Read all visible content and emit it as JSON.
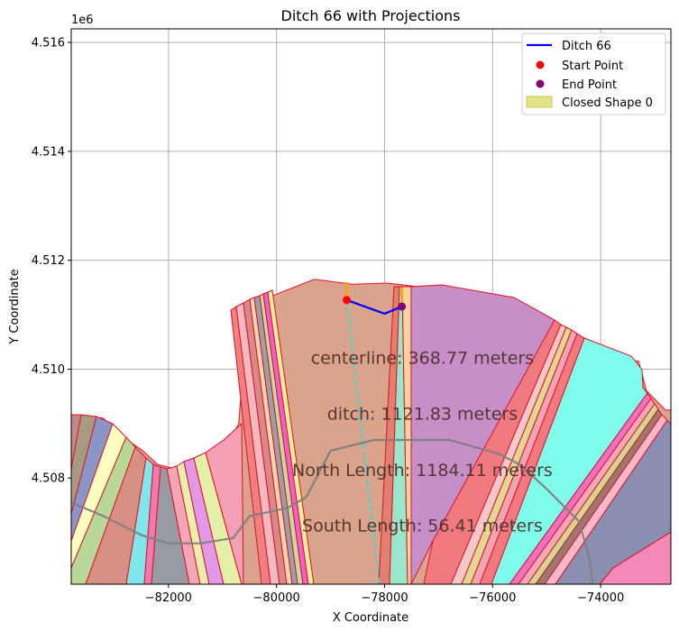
{
  "chart_data": {
    "type": "map",
    "title": "Ditch 66 with Projections",
    "xlabel": "X Coordinate",
    "ylabel": "Y Coordinate",
    "y_offset_label": "1e6",
    "xlim": [
      -83800,
      -72700
    ],
    "ylim": [
      4506050,
      4516250
    ],
    "grid": true,
    "x_ticks": [
      {
        "value": -82000,
        "label": "−82000"
      },
      {
        "value": -80000,
        "label": "−80000"
      },
      {
        "value": -78000,
        "label": "−78000"
      },
      {
        "value": -76000,
        "label": "−76000"
      },
      {
        "value": -74000,
        "label": "−74000"
      }
    ],
    "y_ticks": [
      {
        "value": 4508000,
        "label": "4.508"
      },
      {
        "value": 4510000,
        "label": "4.510"
      },
      {
        "value": 4512000,
        "label": "4.512"
      },
      {
        "value": 4514000,
        "label": "4.514"
      },
      {
        "value": 4516000,
        "label": "4.516"
      }
    ],
    "legend": {
      "position": "upper right",
      "entries": [
        {
          "label": "Ditch 66",
          "kind": "line",
          "color": "#0000ff"
        },
        {
          "label": "Start Point",
          "kind": "point",
          "color": "#ff0000"
        },
        {
          "label": "End Point",
          "kind": "point",
          "color": "#800080"
        },
        {
          "label": "Closed Shape 0",
          "kind": "patch",
          "color": "#d4d44a"
        }
      ]
    },
    "series": [
      {
        "name": "Ditch 66",
        "type": "line",
        "color": "#0000ff",
        "points": [
          [
            -78700,
            4511270
          ],
          [
            -78000,
            4511020
          ],
          [
            -77680,
            4511150
          ]
        ]
      },
      {
        "name": "Start Point",
        "type": "scatter",
        "color": "#ff0000",
        "points": [
          [
            -78700,
            4511270
          ]
        ]
      },
      {
        "name": "End Point",
        "type": "scatter",
        "color": "#800080",
        "points": [
          [
            -77680,
            4511150
          ]
        ]
      },
      {
        "name": "Closed Shape 0",
        "type": "area",
        "color": "#d4d44a",
        "points": [
          [
            -83800,
            4509150
          ],
          [
            -83200,
            4509100
          ],
          [
            -83000,
            4508850
          ],
          [
            -82500,
            4508520
          ],
          [
            -82200,
            4508250
          ],
          [
            -81800,
            4508150
          ],
          [
            -81400,
            4508300
          ],
          [
            -80900,
            4508600
          ],
          [
            -80700,
            4509000
          ],
          [
            -80600,
            4510250
          ],
          [
            -80650,
            4510900
          ],
          [
            -80200,
            4511300
          ],
          [
            -79300,
            4511650
          ],
          [
            -78600,
            4511560
          ],
          [
            -77950,
            4511580
          ],
          [
            -77250,
            4511500
          ],
          [
            -76600,
            4511250
          ],
          [
            -75600,
            4510850
          ],
          [
            -74800,
            4510500
          ],
          [
            -74100,
            4510200
          ],
          [
            -73300,
            4510150
          ],
          [
            -73150,
            4509600
          ],
          [
            -72800,
            4509250
          ],
          [
            -72700,
            4509250
          ],
          [
            -72700,
            4506050
          ],
          [
            -83800,
            4506050
          ]
        ]
      }
    ],
    "overlays": [
      {
        "kind": "dashed_line",
        "color": "#33dddd",
        "points": [
          [
            -78700,
            4511270
          ],
          [
            -78100,
            4506050
          ]
        ]
      },
      {
        "kind": "line",
        "color": "#808080",
        "points": [
          [
            -83800,
            4507550
          ],
          [
            -83200,
            4507300
          ],
          [
            -82500,
            4506950
          ],
          [
            -82000,
            4506800
          ],
          [
            -81400,
            4506800
          ],
          [
            -80800,
            4506900
          ],
          [
            -80500,
            4507300
          ],
          [
            -79800,
            4507450
          ],
          [
            -79450,
            4507650
          ],
          [
            -79000,
            4508500
          ],
          [
            -78200,
            4508700
          ],
          [
            -76800,
            4508700
          ],
          [
            -75900,
            4508450
          ],
          [
            -75500,
            4508250
          ],
          [
            -75000,
            4507800
          ],
          [
            -74400,
            4507200
          ],
          [
            -74200,
            4506500
          ],
          [
            -74150,
            4506050
          ]
        ]
      },
      {
        "kind": "line",
        "color": "#ffa500",
        "points": [
          [
            -78700,
            4511270
          ],
          [
            -78700,
            4511600
          ]
        ]
      },
      {
        "kind": "line",
        "color": "#ffa500",
        "points": [
          [
            -77680,
            4511150
          ],
          [
            -77680,
            4511500
          ]
        ]
      }
    ],
    "annotations": [
      {
        "text": "centerline: 368.77 meters",
        "x": -77300,
        "y": 4510100
      },
      {
        "text": "ditch: 1121.83 meters",
        "x": -77300,
        "y": 4509070
      },
      {
        "text": "North Length: 1184.11 meters",
        "x": -77300,
        "y": 4508040
      },
      {
        "text": "South Length: 56.41 meters",
        "x": -77300,
        "y": 4507020
      }
    ]
  }
}
